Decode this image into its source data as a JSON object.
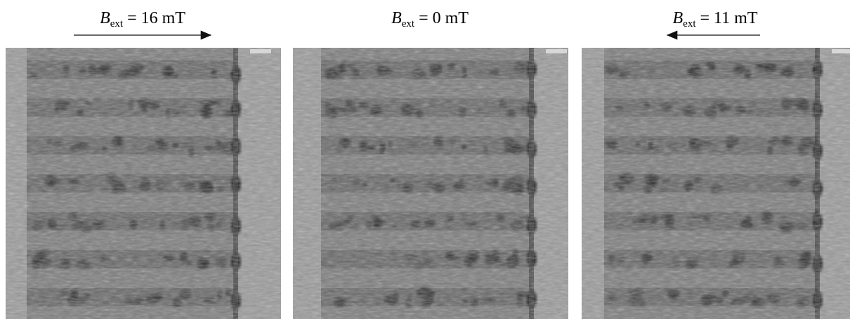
{
  "panels": [
    {
      "symbol": "B",
      "subscript": "ext",
      "value": "= 16 mT"
    },
    {
      "symbol": "B",
      "subscript": "ext",
      "value": "= 0 mT"
    },
    {
      "symbol": "B",
      "subscript": "ext",
      "value": "= 11 mT"
    }
  ]
}
